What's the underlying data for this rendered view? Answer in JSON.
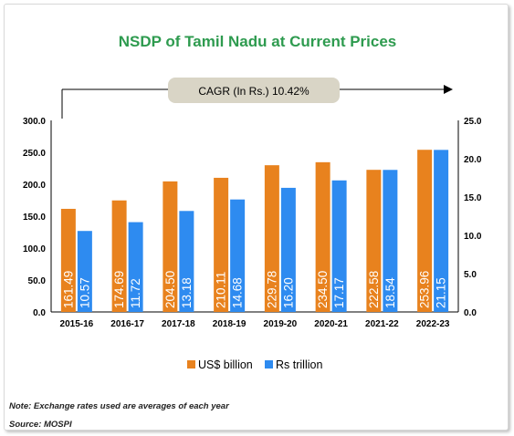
{
  "chart_data": {
    "type": "bar",
    "title": "NSDP of Tamil Nadu at Current Prices",
    "annotation": "CAGR (In Rs.) 10.42%",
    "categories": [
      "2015-16",
      "2016-17",
      "2017-18",
      "2018-19",
      "2019-20",
      "2020-21",
      "2021-22",
      "2022-23"
    ],
    "series": [
      {
        "name": "US$ billion",
        "axis": "left",
        "color": "#E8821E",
        "values": [
          161.49,
          174.69,
          204.5,
          210.11,
          229.78,
          234.5,
          222.58,
          253.96
        ],
        "labels": [
          "161.49",
          "174.69",
          "204.50",
          "210.11",
          "229.78",
          "234.50",
          "222.58",
          "253.96"
        ]
      },
      {
        "name": "Rs trillion",
        "axis": "right",
        "color": "#2E8BF0",
        "values": [
          10.57,
          11.72,
          13.18,
          14.68,
          16.2,
          17.17,
          18.54,
          21.15
        ],
        "labels": [
          "10.57",
          "11.72",
          "13.18",
          "14.68",
          "16.20",
          "17.17",
          "18.54",
          "21.15"
        ]
      }
    ],
    "y_left": {
      "min": 0,
      "max": 300,
      "ticks": [
        "0.0",
        "50.0",
        "100.0",
        "150.0",
        "200.0",
        "250.0",
        "300.0"
      ]
    },
    "y_right": {
      "min": 0,
      "max": 25,
      "ticks": [
        "0.0",
        "5.0",
        "10.0",
        "15.0",
        "20.0",
        "25.0"
      ]
    },
    "grid": false,
    "legend_position": "bottom"
  },
  "notes": {
    "note": "Note: Exchange rates used are averages of each year",
    "source": "Source: MOSPI"
  },
  "colors": {
    "title": "#2E9B4F",
    "cagr_box": "#D9D5C6",
    "axis": "#000000"
  }
}
